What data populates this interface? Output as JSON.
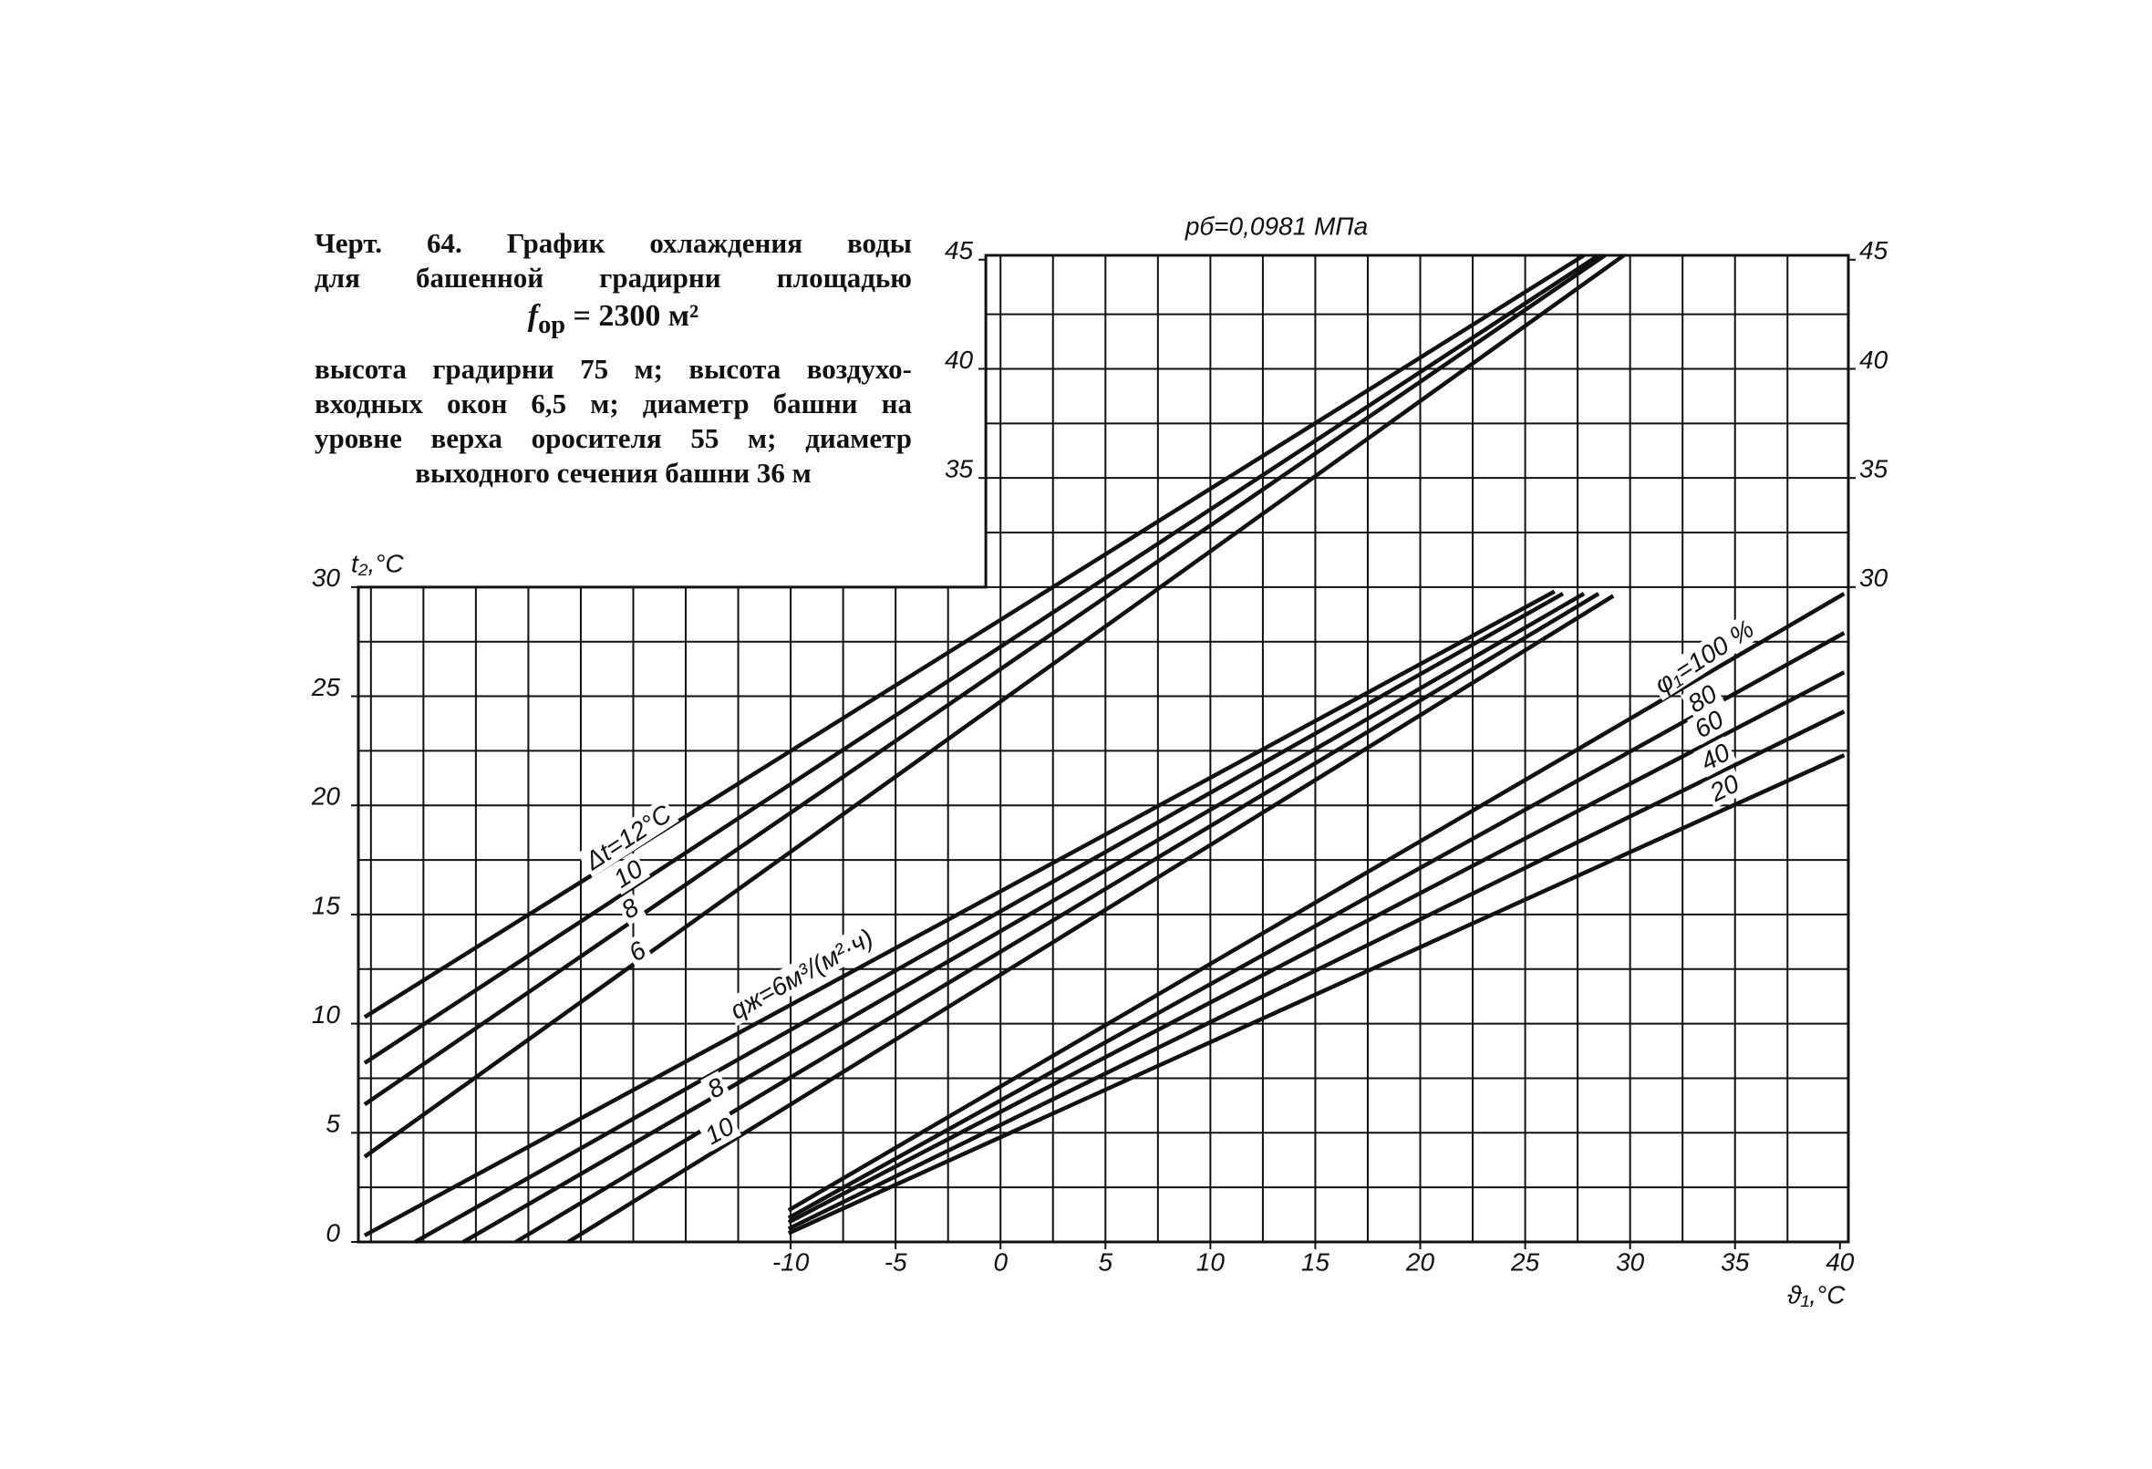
{
  "caption": {
    "title_lines": [
      "Черт. 64. График охлаждения воды",
      "для башенной градирни площадью"
    ],
    "formula": {
      "symbol": "f",
      "subscript": "ор",
      "rest": "= 2300 м²"
    },
    "body_lines": [
      "высота градирни 75 м; высота воздухо-",
      "входных окон 6,5 м; диаметр башни на",
      "уровне верха оросителя 55 м; диаметр",
      "выходного сечения башни 36 м"
    ]
  },
  "chart_data": {
    "type": "nomogram",
    "top_label": "pб=0,0981 МПа",
    "y_label": "t₂,°C",
    "x_label": "ϑ₁,°C",
    "xlim": [
      -30.6,
      40.4
    ],
    "ylim": [
      0,
      45.2
    ],
    "upper_xlim": [
      -0.7,
      40.4
    ],
    "upper_ylim": [
      30,
      45.2
    ],
    "xticks": [
      -10,
      -5,
      0,
      5,
      10,
      15,
      20,
      25,
      30,
      35,
      40
    ],
    "yticks": [
      0,
      5,
      10,
      15,
      20,
      25,
      30,
      35,
      40,
      45
    ],
    "xgrid": [
      -30,
      -27.5,
      -25,
      -22.5,
      -20,
      -17.5,
      -15,
      -12.5,
      -10,
      -7.5,
      -5,
      -2.5,
      0,
      2.5,
      5,
      7.5,
      10,
      12.5,
      15,
      17.5,
      20,
      22.5,
      25,
      27.5,
      30,
      32.5,
      35,
      37.5
    ],
    "ygrid": [
      2.5,
      5,
      7.5,
      10,
      12.5,
      15,
      17.5,
      20,
      22.5,
      25,
      27.5,
      30,
      32.5,
      35,
      37.5,
      40,
      42.5
    ],
    "color": "#111111",
    "series": [
      {
        "name": "Δt=12°C",
        "x": [
          -30.3,
          27.8
        ],
        "values": [
          10.3,
          45.2
        ]
      },
      {
        "name": "10",
        "x": [
          -30.3,
          28.5
        ],
        "values": [
          8.2,
          45.2
        ]
      },
      {
        "name": "8",
        "x": [
          -30.3,
          28.8
        ],
        "values": [
          6.3,
          45.2
        ]
      },
      {
        "name": "6",
        "x": [
          -30.3,
          29.7
        ],
        "values": [
          3.9,
          45.2
        ]
      },
      {
        "name": "qж=6м³/(м²·ч)",
        "x": [
          -30.3,
          26.4
        ],
        "values": [
          0.3,
          29.8
        ]
      },
      {
        "x": [
          -27.9,
          26.8
        ],
        "values": [
          0,
          29.7
        ]
      },
      {
        "name": "8",
        "x": [
          -25.6,
          27.8
        ],
        "values": [
          0,
          29.7
        ]
      },
      {
        "x": [
          -23.1,
          28.5
        ],
        "values": [
          0,
          29.7
        ]
      },
      {
        "name": "10",
        "x": [
          -20.6,
          29.2
        ],
        "values": [
          0,
          29.6
        ]
      },
      {
        "name": "φ₁=100 %",
        "x": [
          -10.1,
          40.2
        ],
        "values": [
          1.45,
          29.7
        ]
      },
      {
        "name": "80",
        "x": [
          -10.1,
          40.2
        ],
        "values": [
          1.1,
          27.9
        ]
      },
      {
        "name": "60",
        "x": [
          -10.1,
          40.2
        ],
        "values": [
          0.9,
          26.1
        ]
      },
      {
        "name": "40",
        "x": [
          -10.1,
          40.2
        ],
        "values": [
          0.6,
          24.3
        ]
      },
      {
        "name": "20",
        "x": [
          -10.1,
          40.2
        ],
        "values": [
          0.4,
          22.3
        ]
      }
    ]
  }
}
